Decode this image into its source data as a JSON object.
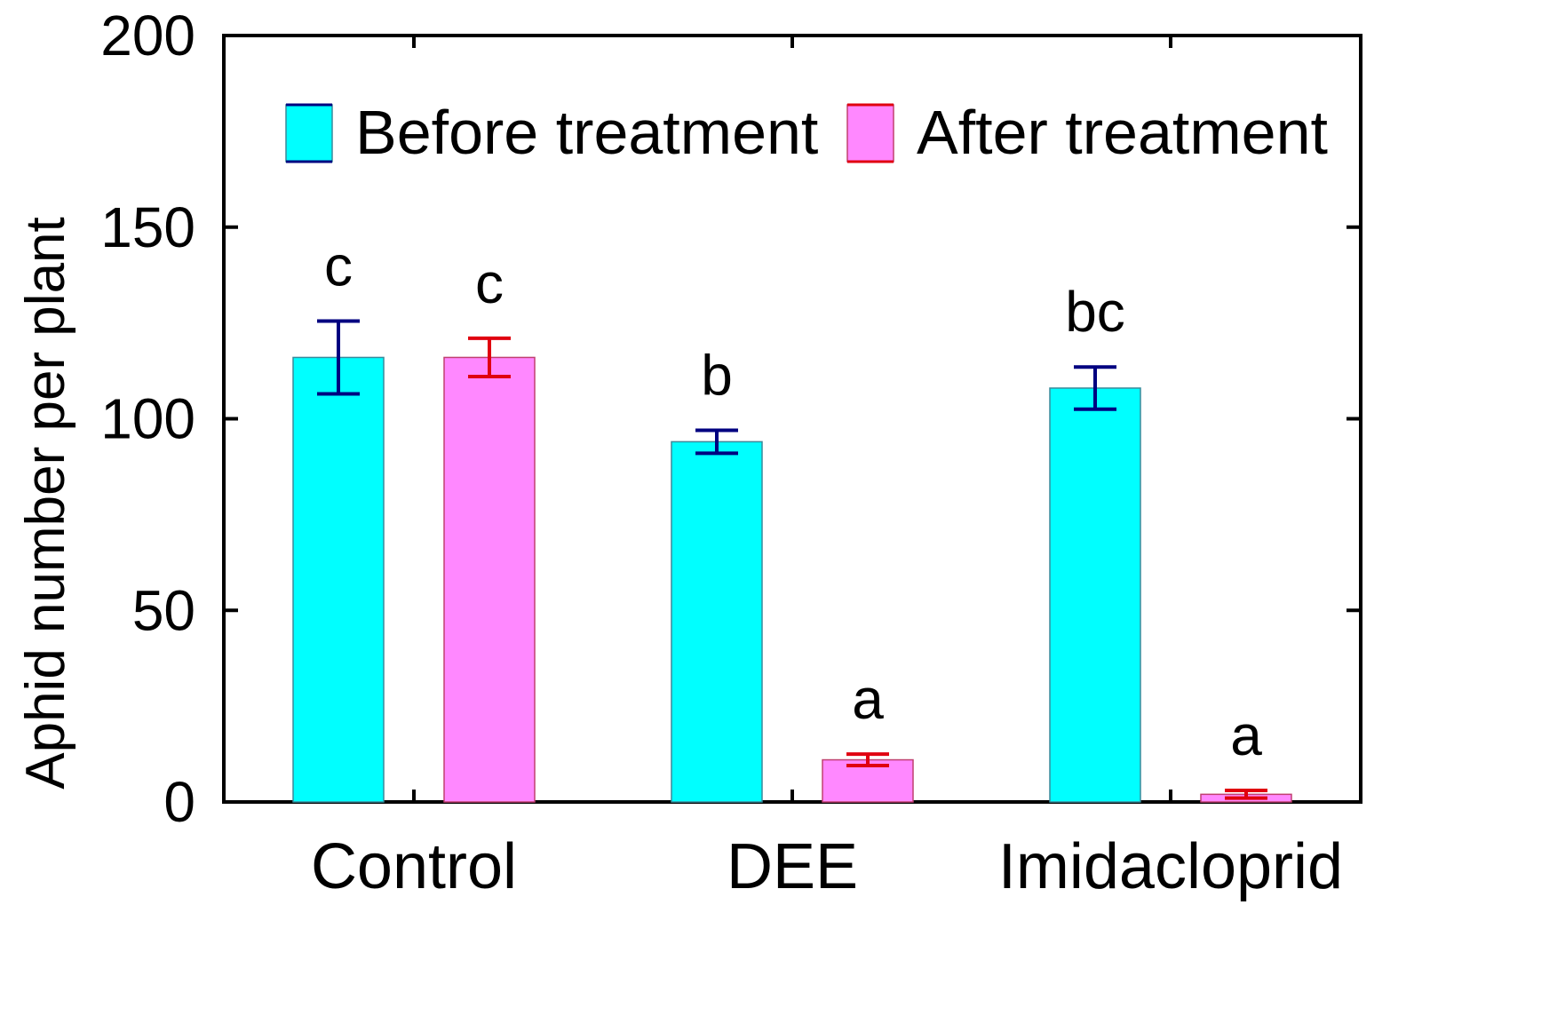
{
  "chart_data": {
    "type": "bar",
    "title": "",
    "xlabel": "",
    "ylabel": "Aphid number per plant",
    "ylim": [
      0,
      200
    ],
    "yticks": [
      0,
      50,
      100,
      150,
      200
    ],
    "categories": [
      "Control",
      "DEE",
      "Imidacloprid"
    ],
    "legend_position": "top",
    "series": [
      {
        "name": "Before treatment",
        "color": "#00FFFF",
        "error_color": "#000080",
        "values": [
          116,
          94,
          108
        ],
        "errors": [
          9.5,
          3,
          5.5
        ],
        "significance": [
          "c",
          "b",
          "bc"
        ]
      },
      {
        "name": "After treatment",
        "color": "#FF88FF",
        "error_color": "#E00010",
        "values": [
          116,
          11,
          2
        ],
        "errors": [
          5,
          1.5,
          1
        ],
        "significance": [
          "c",
          "a",
          "a"
        ]
      }
    ]
  }
}
